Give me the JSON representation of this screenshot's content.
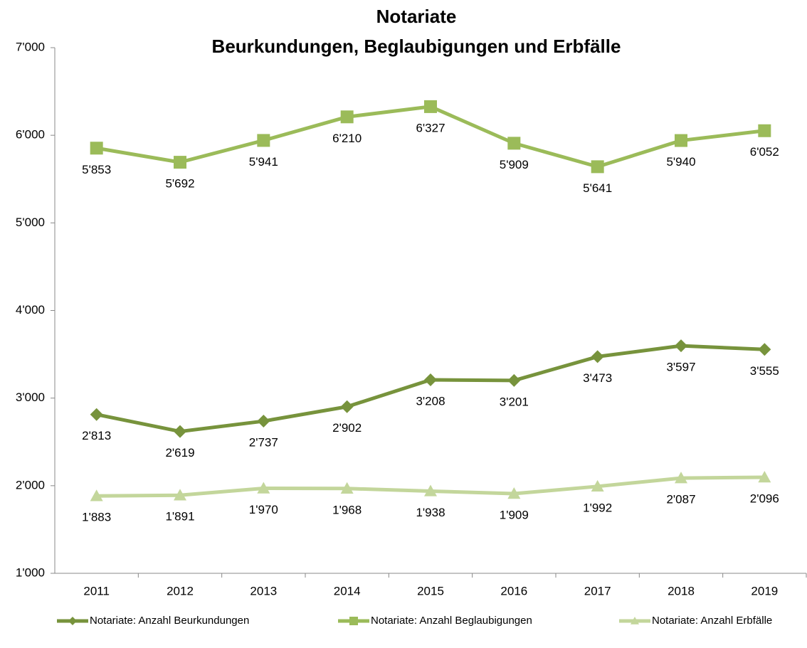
{
  "chart_data": {
    "type": "line",
    "title": [
      "Notariate",
      "Beurkundungen, Beglaubigungen und Erbfälle"
    ],
    "categories": [
      "2011",
      "2012",
      "2013",
      "2014",
      "2015",
      "2016",
      "2017",
      "2018",
      "2019"
    ],
    "series": [
      {
        "name": "Notariate: Anzahl Beurkundungen",
        "color": "#77933c",
        "marker": "diamond",
        "values": [
          2813,
          2619,
          2737,
          2902,
          3208,
          3201,
          3473,
          3597,
          3555
        ],
        "value_labels": [
          "2'813",
          "2'619",
          "2'737",
          "2'902",
          "3'208",
          "3'201",
          "3'473",
          "3'597",
          "3'555"
        ]
      },
      {
        "name": "Notariate: Anzahl Beglaubigungen",
        "color": "#9bbb59",
        "marker": "square",
        "values": [
          5853,
          5692,
          5941,
          6210,
          6327,
          5909,
          5641,
          5940,
          6052
        ],
        "value_labels": [
          "5'853",
          "5'692",
          "5'941",
          "6'210",
          "6'327",
          "5'909",
          "5'641",
          "5'940",
          "6'052"
        ]
      },
      {
        "name": "Notariate: Anzahl Erbfälle",
        "color": "#c3d69b",
        "marker": "triangle",
        "values": [
          1883,
          1891,
          1970,
          1968,
          1938,
          1909,
          1992,
          2087,
          2096
        ],
        "value_labels": [
          "1'883",
          "1'891",
          "1'970",
          "1'968",
          "1'938",
          "1'909",
          "1'992",
          "2'087",
          "2'096"
        ]
      }
    ],
    "ylim": [
      1000,
      7000
    ],
    "yticks": [
      {
        "value": 1000,
        "label": "1'000"
      },
      {
        "value": 2000,
        "label": "2'000"
      },
      {
        "value": 3000,
        "label": "3'000"
      },
      {
        "value": 4000,
        "label": "4'000"
      },
      {
        "value": 5000,
        "label": "5'000"
      },
      {
        "value": 6000,
        "label": "6'000"
      },
      {
        "value": 7000,
        "label": "7'000"
      }
    ],
    "legend": "bottom"
  }
}
